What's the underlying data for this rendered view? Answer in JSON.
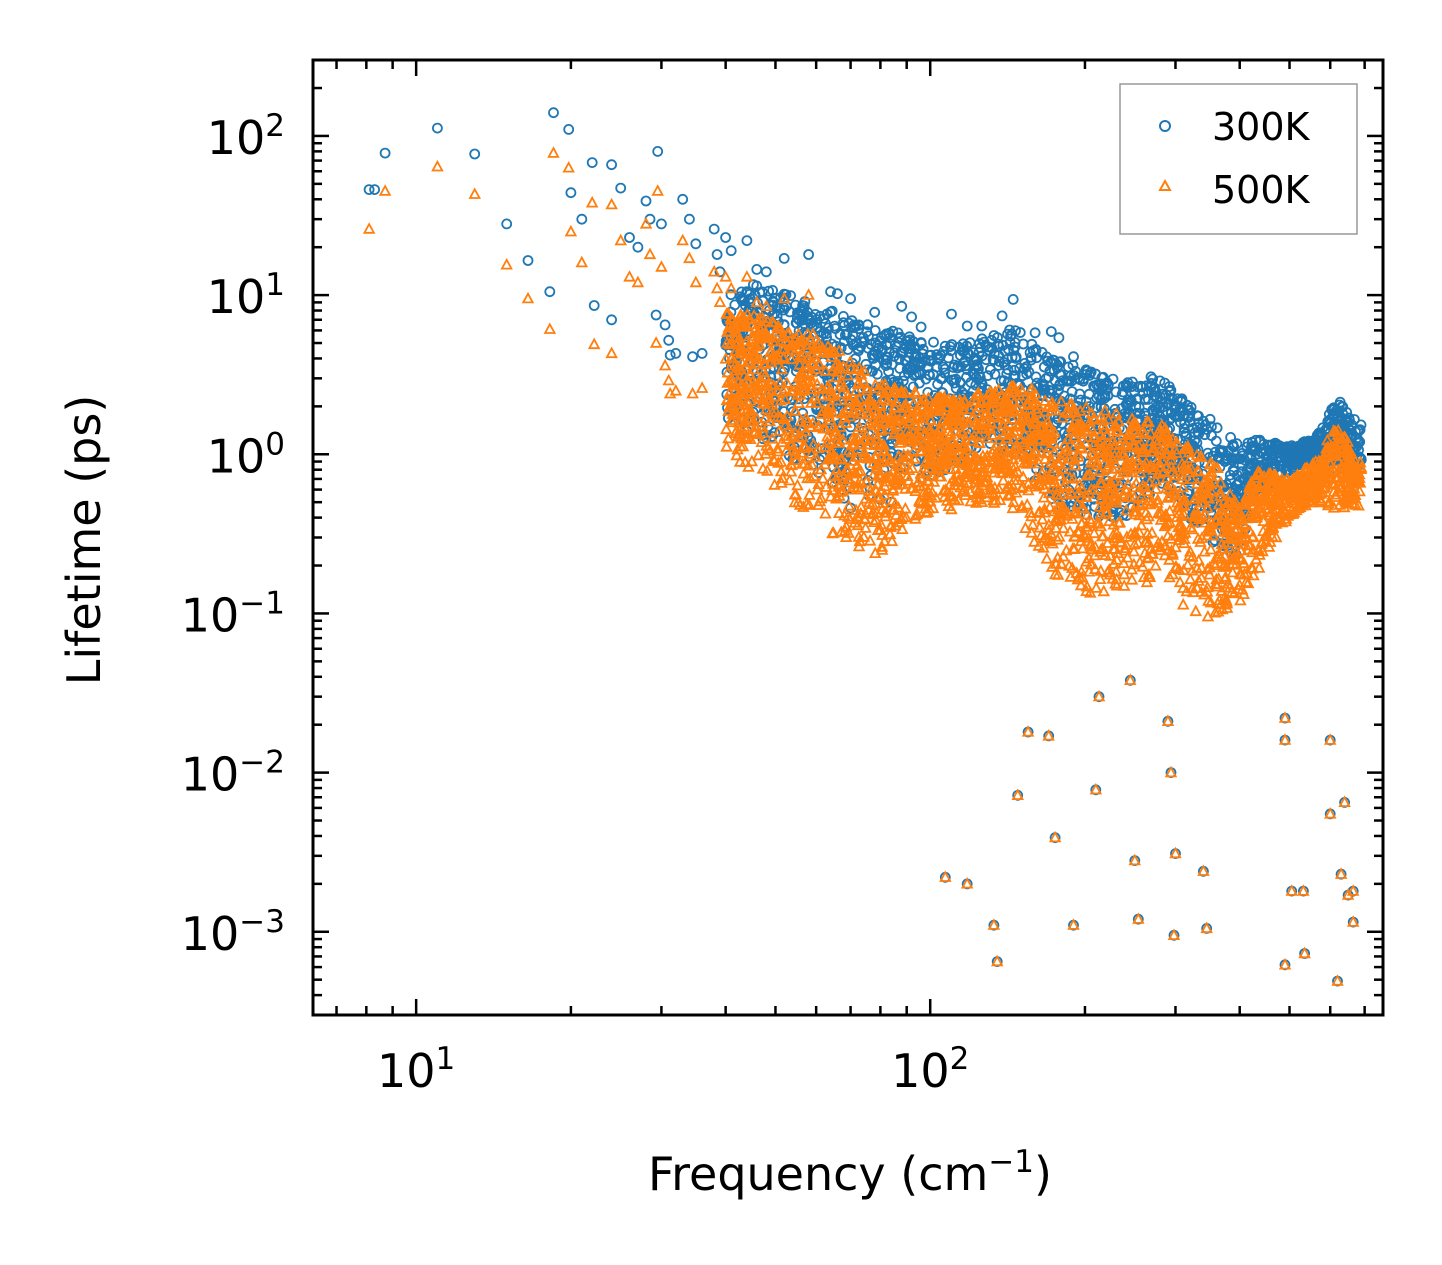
{
  "chart_data": {
    "type": "scatter",
    "title": "",
    "xlabel": "Frequency (cm",
    "xlabel_sup": "−1",
    "xlabel_close": ")",
    "ylabel": "Lifetime (ps)",
    "xscale": "log",
    "yscale": "log",
    "xlim": [
      6.3,
      760
    ],
    "ylim": [
      0.0003,
      300
    ],
    "xticks": [
      {
        "base": "10",
        "exp": "1",
        "value": 10
      },
      {
        "base": "10",
        "exp": "2",
        "value": 100
      }
    ],
    "yticks": [
      {
        "base": "10",
        "exp": "2",
        "value": 100
      },
      {
        "base": "10",
        "exp": "1",
        "value": 10
      },
      {
        "base": "10",
        "exp": "0",
        "value": 1
      },
      {
        "base": "10",
        "exp": "−1",
        "value": 0.1
      },
      {
        "base": "10",
        "exp": "−2",
        "value": 0.01
      },
      {
        "base": "10",
        "exp": "−3",
        "value": 0.001
      }
    ],
    "legend_position": "top-right",
    "series": [
      {
        "name": "300K",
        "marker": "circle",
        "color": "#1f77b4",
        "isolated_points": [
          [
            8.1,
            46
          ],
          [
            8.7,
            78
          ],
          [
            11,
            112
          ],
          [
            13,
            77
          ],
          [
            18.5,
            140
          ],
          [
            19.8,
            110
          ],
          [
            8.3,
            46
          ],
          [
            15,
            28
          ],
          [
            16.5,
            16.5
          ],
          [
            18.2,
            10.5
          ],
          [
            20,
            44
          ],
          [
            21,
            30
          ],
          [
            22,
            68
          ],
          [
            24,
            66
          ],
          [
            25,
            47
          ],
          [
            22.2,
            8.6
          ],
          [
            24,
            7
          ],
          [
            26,
            23
          ],
          [
            27,
            20
          ],
          [
            28,
            39
          ],
          [
            28.5,
            30
          ],
          [
            29.5,
            80
          ],
          [
            30,
            28
          ],
          [
            33,
            40
          ],
          [
            34,
            30
          ],
          [
            35,
            21
          ],
          [
            29.3,
            7.5
          ],
          [
            30.5,
            6.5
          ],
          [
            31,
            5.2
          ],
          [
            31.2,
            4.2
          ],
          [
            32,
            4.3
          ],
          [
            34.5,
            4.1
          ],
          [
            36,
            4.3
          ],
          [
            38,
            26
          ],
          [
            38.5,
            18
          ],
          [
            39,
            14
          ],
          [
            40,
            23
          ],
          [
            41,
            19
          ],
          [
            44,
            22
          ],
          [
            46,
            14.5
          ],
          [
            48,
            14
          ],
          [
            52,
            17
          ],
          [
            58,
            18
          ],
          [
            64,
            10.5
          ],
          [
            66,
            10.2
          ],
          [
            70,
            9.5
          ],
          [
            78,
            7.8
          ],
          [
            88,
            8.5
          ],
          [
            92,
            7.3
          ],
          [
            96,
            6.3
          ],
          [
            110,
            7.6
          ],
          [
            118,
            6.4
          ],
          [
            126,
            6.4
          ],
          [
            138,
            7.4
          ],
          [
            145,
            9.4
          ],
          [
            160,
            5.8
          ],
          [
            172,
            5.9
          ],
          [
            178,
            5.4
          ],
          [
            190,
            4.1
          ],
          [
            76,
            0.55
          ],
          [
            80,
            0.52
          ],
          [
            84,
            0.5
          ],
          [
            70,
            0.46
          ],
          [
            68,
            0.53
          ]
        ],
        "low_points": [
          [
            155,
            0.018
          ],
          [
            170,
            0.017
          ],
          [
            213,
            0.03
          ],
          [
            245,
            0.038
          ],
          [
            290,
            0.021
          ],
          [
            294,
            0.01
          ],
          [
            148,
            0.0072
          ],
          [
            210,
            0.0078
          ],
          [
            175,
            0.0039
          ],
          [
            300,
            0.0031
          ],
          [
            250,
            0.0028
          ],
          [
            340,
            0.0024
          ],
          [
            107,
            0.0022
          ],
          [
            118,
            0.002
          ],
          [
            190,
            0.0011
          ],
          [
            254,
            0.0012
          ],
          [
            133,
            0.0011
          ],
          [
            298,
            0.00095
          ],
          [
            345,
            0.00105
          ],
          [
            135,
            0.00065
          ],
          [
            490,
            0.022
          ],
          [
            490,
            0.016
          ],
          [
            600,
            0.016
          ],
          [
            640,
            0.0065
          ],
          [
            600,
            0.0055
          ],
          [
            630,
            0.0023
          ],
          [
            505,
            0.0018
          ],
          [
            532,
            0.0018
          ],
          [
            650,
            0.0017
          ],
          [
            665,
            0.0018
          ],
          [
            665,
            0.00115
          ],
          [
            490,
            0.00062
          ],
          [
            535,
            0.00073
          ],
          [
            620,
            0.00049
          ]
        ]
      },
      {
        "name": "500K",
        "marker": "triangle",
        "color": "#ff7f0e",
        "isolated_points": [
          [
            8.1,
            26
          ],
          [
            8.7,
            45
          ],
          [
            11,
            64
          ],
          [
            13,
            43
          ],
          [
            18.5,
            78
          ],
          [
            19.8,
            63
          ],
          [
            15,
            15.5
          ],
          [
            16.5,
            9.5
          ],
          [
            18.2,
            6.1
          ],
          [
            20,
            25
          ],
          [
            21,
            16
          ],
          [
            22,
            38
          ],
          [
            24,
            37
          ],
          [
            25,
            22
          ],
          [
            22.2,
            4.9
          ],
          [
            24,
            4.3
          ],
          [
            26,
            13
          ],
          [
            27,
            12
          ],
          [
            28,
            28
          ],
          [
            28.5,
            18
          ],
          [
            29.5,
            45
          ],
          [
            30,
            15
          ],
          [
            33,
            22
          ],
          [
            34,
            17
          ],
          [
            35,
            12
          ],
          [
            29.3,
            5
          ],
          [
            30.5,
            3.6
          ],
          [
            31,
            2.9
          ],
          [
            31.2,
            2.4
          ],
          [
            32,
            2.5
          ],
          [
            34.5,
            2.4
          ],
          [
            36,
            2.6
          ],
          [
            38,
            14
          ],
          [
            38.5,
            11
          ],
          [
            39,
            9
          ],
          [
            40,
            13
          ],
          [
            41,
            11
          ],
          [
            44,
            13
          ],
          [
            46,
            9
          ],
          [
            48,
            8.5
          ],
          [
            52,
            9.5
          ],
          [
            58,
            10
          ]
        ],
        "low_points": [
          [
            155,
            0.018
          ],
          [
            170,
            0.017
          ],
          [
            213,
            0.03
          ],
          [
            245,
            0.038
          ],
          [
            290,
            0.021
          ],
          [
            294,
            0.01
          ],
          [
            148,
            0.0072
          ],
          [
            210,
            0.0078
          ],
          [
            175,
            0.0039
          ],
          [
            300,
            0.0031
          ],
          [
            250,
            0.0028
          ],
          [
            340,
            0.0024
          ],
          [
            107,
            0.0022
          ],
          [
            118,
            0.002
          ],
          [
            190,
            0.0011
          ],
          [
            254,
            0.0012
          ],
          [
            133,
            0.0011
          ],
          [
            298,
            0.00095
          ],
          [
            345,
            0.00105
          ],
          [
            135,
            0.00065
          ],
          [
            490,
            0.022
          ],
          [
            490,
            0.016
          ],
          [
            600,
            0.016
          ],
          [
            640,
            0.0065
          ],
          [
            600,
            0.0055
          ],
          [
            630,
            0.0023
          ],
          [
            505,
            0.0018
          ],
          [
            532,
            0.0018
          ],
          [
            650,
            0.0017
          ],
          [
            665,
            0.0018
          ],
          [
            665,
            0.00115
          ],
          [
            490,
            0.00062
          ],
          [
            535,
            0.00073
          ],
          [
            620,
            0.00049
          ]
        ]
      }
    ],
    "dense_band": {
      "description_fields": [
        "freq",
        "log10_lo_300K",
        "log10_hi_300K",
        "log10_lo_500K",
        "log10_hi_500K"
      ],
      "knots": [
        [
          40,
          0.2,
          1.1,
          0.0,
          0.9
        ],
        [
          50,
          0.05,
          1.05,
          -0.2,
          0.85
        ],
        [
          60,
          -0.15,
          0.95,
          -0.45,
          0.75
        ],
        [
          70,
          -0.25,
          0.85,
          -0.6,
          0.6
        ],
        [
          80,
          -0.2,
          0.8,
          -0.65,
          0.45
        ],
        [
          90,
          -0.2,
          0.75,
          -0.45,
          0.4
        ],
        [
          110,
          -0.1,
          0.7,
          -0.35,
          0.35
        ],
        [
          130,
          -0.1,
          0.75,
          -0.3,
          0.4
        ],
        [
          150,
          -0.05,
          0.8,
          -0.45,
          0.45
        ],
        [
          170,
          -0.3,
          0.6,
          -0.75,
          0.35
        ],
        [
          200,
          -0.4,
          0.55,
          -0.9,
          0.3
        ],
        [
          240,
          -0.4,
          0.45,
          -0.85,
          0.25
        ],
        [
          280,
          -0.2,
          0.5,
          -0.8,
          0.2
        ],
        [
          320,
          -0.4,
          0.3,
          -1.0,
          0.05
        ],
        [
          360,
          -0.6,
          0.2,
          -1.05,
          -0.05
        ],
        [
          400,
          -0.7,
          0.05,
          -0.95,
          -0.35
        ],
        [
          430,
          -0.3,
          0.1,
          -0.75,
          -0.1
        ],
        [
          500,
          -0.1,
          0.05,
          -0.4,
          -0.15
        ],
        [
          560,
          -0.05,
          0.1,
          -0.3,
          -0.05
        ],
        [
          620,
          -0.1,
          0.35,
          -0.35,
          0.2
        ],
        [
          680,
          -0.1,
          0.2,
          -0.35,
          -0.05
        ]
      ]
    }
  }
}
